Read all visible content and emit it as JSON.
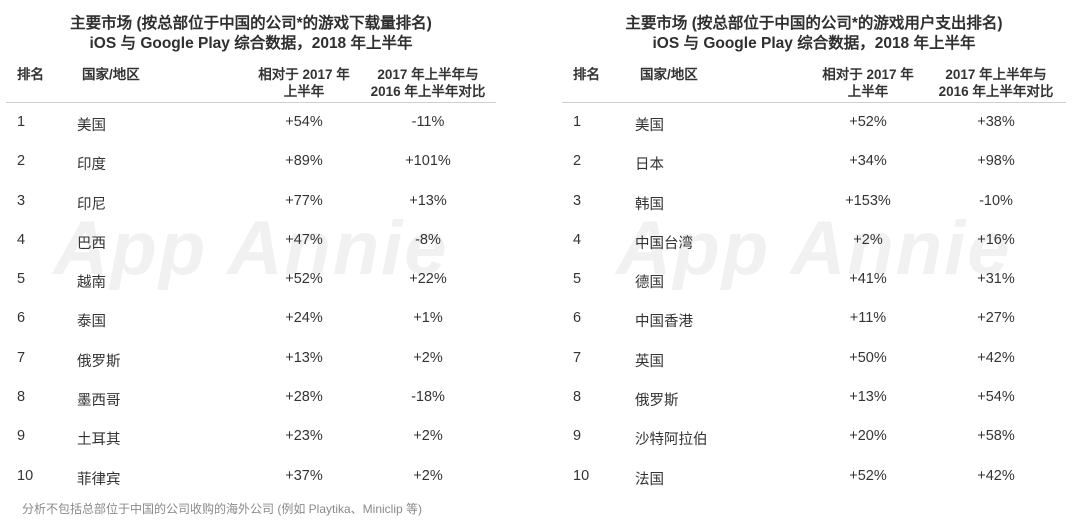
{
  "chart_data": [
    {
      "type": "table",
      "title": "主要市场 (按总部位于中国的公司*的游戏下载量排名)",
      "subtitle": "iOS 与 Google Play 综合数据，2018 年上半年",
      "columns": [
        "排名",
        "国家/地区",
        "相对于 2017 年\n上半年",
        "2017 年上半年与\n2016 年上半年对比"
      ],
      "rows": [
        {
          "rank": "1",
          "country": "美国",
          "vs_2017h1": "+54%",
          "h1_2017_vs_2016": "-11%"
        },
        {
          "rank": "2",
          "country": "印度",
          "vs_2017h1": "+89%",
          "h1_2017_vs_2016": "+101%"
        },
        {
          "rank": "3",
          "country": "印尼",
          "vs_2017h1": "+77%",
          "h1_2017_vs_2016": "+13%"
        },
        {
          "rank": "4",
          "country": "巴西",
          "vs_2017h1": "+47%",
          "h1_2017_vs_2016": "-8%"
        },
        {
          "rank": "5",
          "country": "越南",
          "vs_2017h1": "+52%",
          "h1_2017_vs_2016": "+22%"
        },
        {
          "rank": "6",
          "country": "泰国",
          "vs_2017h1": "+24%",
          "h1_2017_vs_2016": "+1%"
        },
        {
          "rank": "7",
          "country": "俄罗斯",
          "vs_2017h1": "+13%",
          "h1_2017_vs_2016": "+2%"
        },
        {
          "rank": "8",
          "country": "墨西哥",
          "vs_2017h1": "+28%",
          "h1_2017_vs_2016": "-18%"
        },
        {
          "rank": "9",
          "country": "土耳其",
          "vs_2017h1": "+23%",
          "h1_2017_vs_2016": "+2%"
        },
        {
          "rank": "10",
          "country": "菲律宾",
          "vs_2017h1": "+37%",
          "h1_2017_vs_2016": "+2%"
        }
      ]
    },
    {
      "type": "table",
      "title": "主要市场 (按总部位于中国的公司*的游戏用户支出排名)",
      "subtitle": "iOS 与 Google Play 综合数据，2018 年上半年",
      "columns": [
        "排名",
        "国家/地区",
        "相对于 2017 年\n上半年",
        "2017 年上半年与\n2016 年上半年对比"
      ],
      "rows": [
        {
          "rank": "1",
          "country": "美国",
          "vs_2017h1": "+52%",
          "h1_2017_vs_2016": "+38%"
        },
        {
          "rank": "2",
          "country": "日本",
          "vs_2017h1": "+34%",
          "h1_2017_vs_2016": "+98%"
        },
        {
          "rank": "3",
          "country": "韩国",
          "vs_2017h1": "+153%",
          "h1_2017_vs_2016": "-10%"
        },
        {
          "rank": "4",
          "country": "中国台湾",
          "vs_2017h1": "+2%",
          "h1_2017_vs_2016": "+16%"
        },
        {
          "rank": "5",
          "country": "德国",
          "vs_2017h1": "+41%",
          "h1_2017_vs_2016": "+31%"
        },
        {
          "rank": "6",
          "country": "中国香港",
          "vs_2017h1": "+11%",
          "h1_2017_vs_2016": "+27%"
        },
        {
          "rank": "7",
          "country": "英国",
          "vs_2017h1": "+50%",
          "h1_2017_vs_2016": "+42%"
        },
        {
          "rank": "8",
          "country": "俄罗斯",
          "vs_2017h1": "+13%",
          "h1_2017_vs_2016": "+54%"
        },
        {
          "rank": "9",
          "country": "沙特阿拉伯",
          "vs_2017h1": "+20%",
          "h1_2017_vs_2016": "+58%"
        },
        {
          "rank": "10",
          "country": "法国",
          "vs_2017h1": "+52%",
          "h1_2017_vs_2016": "+42%"
        }
      ]
    }
  ],
  "watermark": "App Annie",
  "footnote": "分析不包括总部位于中国的公司收购的海外公司 (例如 Playtika、Miniclip 等)"
}
